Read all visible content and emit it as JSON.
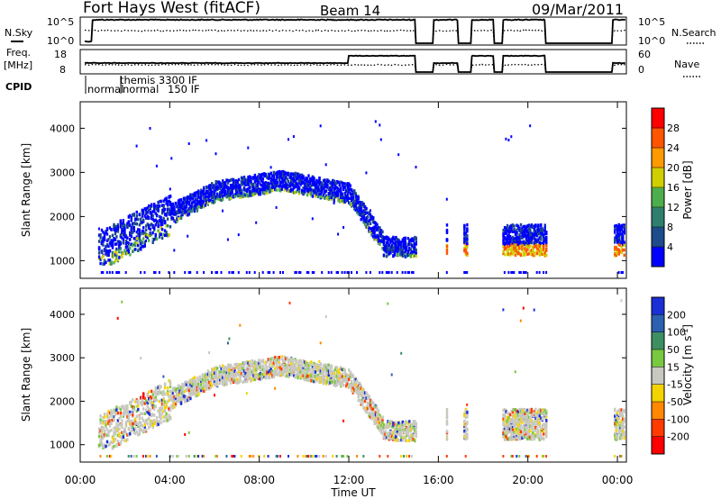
{
  "header": {
    "radar": "Fort Hays West (fitACF)",
    "beam": "Beam 14",
    "date": "09/Mar/2011"
  },
  "top_panels": {
    "nsky_label": "N.Sky",
    "nsky_ticks": [
      "10^5",
      "10^0"
    ],
    "nsearch_label": "N.Search",
    "nsearch_ticks": [
      "10^5",
      "10^0"
    ],
    "freq_label": "Freq.",
    "freq_unit": "[MHz]",
    "freq_ticks": [
      "18",
      "8"
    ],
    "nave_label": "Nave",
    "nave_ticks": [
      "60",
      "0"
    ],
    "cpid_label": "CPID",
    "cpid_names": [
      "themis 3300 IF",
      "normal",
      "normal",
      "150 IF"
    ]
  },
  "chart_data": [
    {
      "type": "heatmap",
      "name": "power",
      "ylabel": "Slant Range [km]",
      "xlabel": "",
      "ylim": [
        600,
        4600
      ],
      "yticks": [
        "1000",
        "2000",
        "3000",
        "4000"
      ],
      "xlim_hours": [
        0,
        24.4
      ],
      "colorbar_label": "Power [dB]",
      "colorbar_ticks": [
        "4",
        "8",
        "12",
        "16",
        "20",
        "24",
        "28"
      ],
      "colors": [
        "#0000ff",
        "#1d4b8c",
        "#2f7f6f",
        "#4dae4d",
        "#cfcf00",
        "#ff9900",
        "#ff5500",
        "#ff0000"
      ]
    },
    {
      "type": "heatmap",
      "name": "velocity",
      "ylabel": "Slant Range [km]",
      "xlabel": "Time UT",
      "ylim": [
        600,
        4600
      ],
      "yticks": [
        "1000",
        "2000",
        "3000",
        "4000"
      ],
      "xticks": [
        "00:00",
        "04:00",
        "08:00",
        "12:00",
        "16:00",
        "20:00",
        "00:00"
      ],
      "xtick_hours": [
        0,
        4,
        8,
        12,
        16,
        20,
        24
      ],
      "colorbar_label": "Velocity [m s",
      "colorbar_label_sup": "-1",
      "colorbar_label_end": "]",
      "colorbar_ticks": [
        "200",
        "100",
        "50",
        "15",
        "-15",
        "-50",
        "-100",
        "-200"
      ],
      "colors": [
        "#1a2fd6",
        "#2c60b0",
        "#3d8f62",
        "#78c840",
        "#c8c8c0",
        "#f4d400",
        "#ff8800",
        "#ff3b00",
        "#ff0000"
      ]
    }
  ]
}
